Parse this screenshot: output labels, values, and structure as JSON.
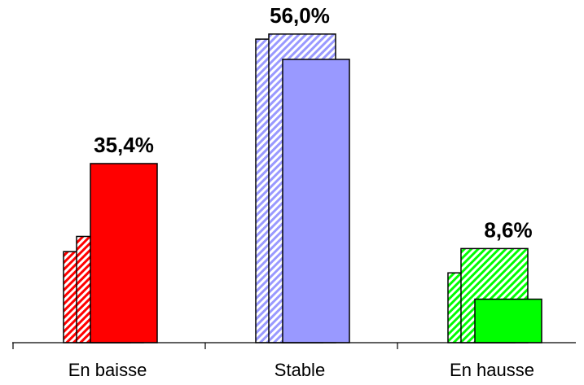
{
  "chart_data": {
    "type": "bar",
    "categories": [
      "En baisse",
      "Stable",
      "En hausse"
    ],
    "values": [
      35.4,
      56.0,
      8.6
    ],
    "value_labels": [
      "35,4%",
      "56,0%",
      "8,6%"
    ],
    "ghost_bars": [
      [
        18.0,
        21.0
      ],
      [
        60.0,
        61.0
      ],
      [
        13.8,
        18.6
      ]
    ],
    "ylim": [
      0,
      65
    ],
    "grid": false,
    "legend": "none",
    "colors": {
      "En baisse": "#ff0000",
      "Stable": "#9999ff",
      "En hausse": "#00ff00"
    },
    "axis_color": "#000000"
  }
}
